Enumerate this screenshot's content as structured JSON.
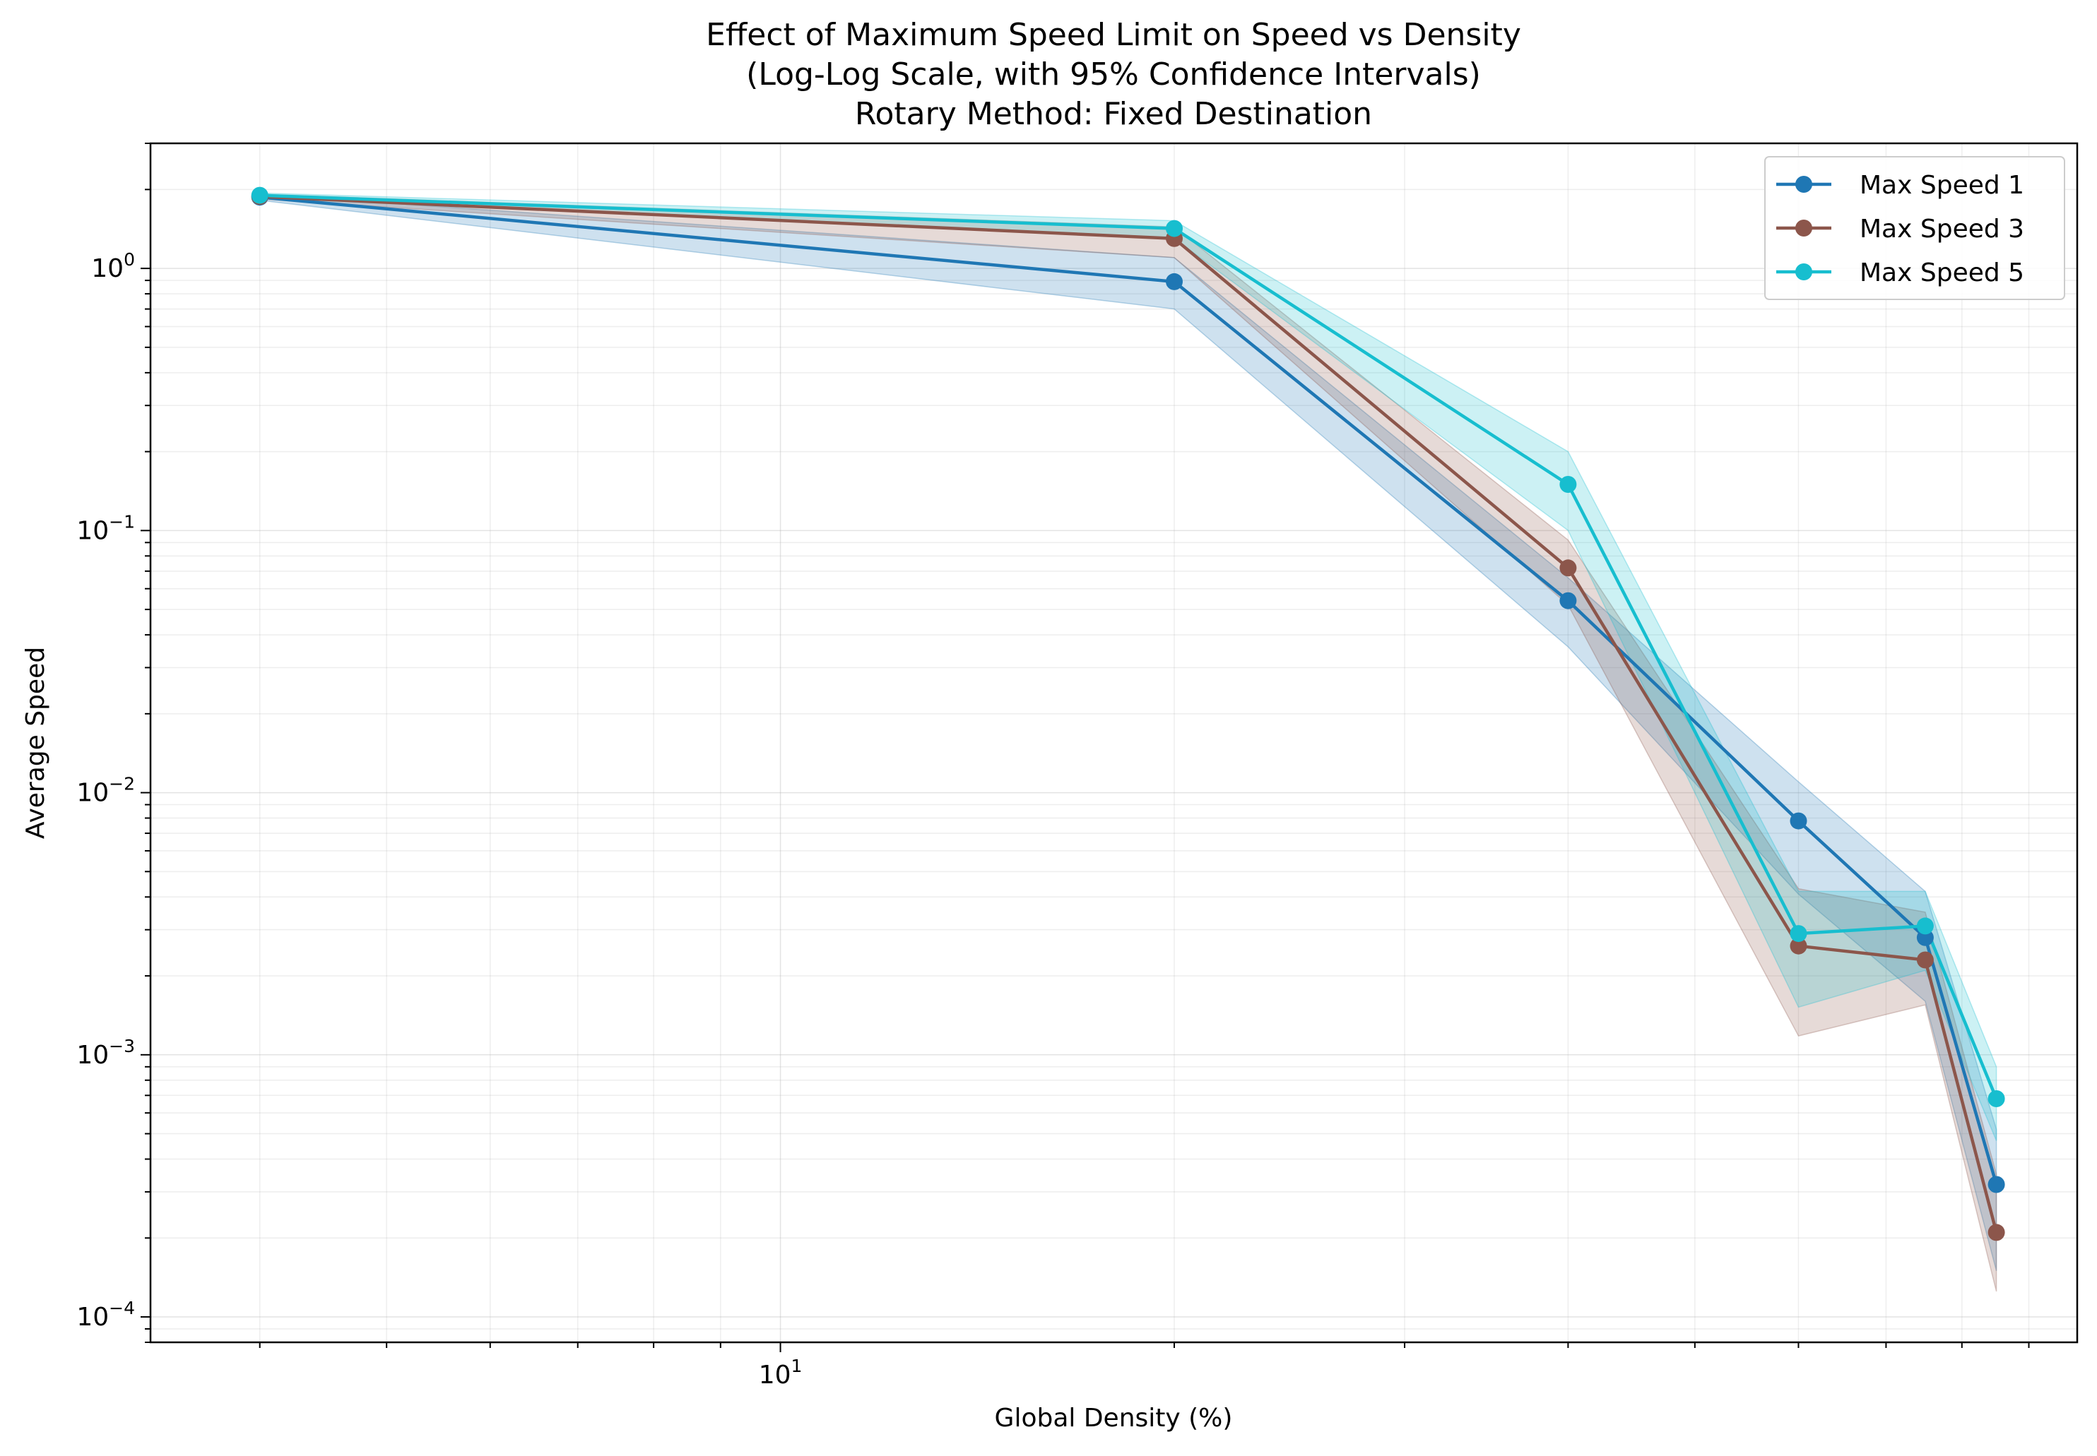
{
  "chart_data": {
    "type": "line",
    "title_lines": [
      "Effect of Maximum Speed Limit on Speed vs Density",
      "(Log-Log Scale, with 95% Confidence Intervals)",
      "Rotary Method: Fixed Destination"
    ],
    "xlabel": "Global Density (%)",
    "ylabel": "Average Speed",
    "xscale": "log",
    "yscale": "log",
    "xlim": [
      3.3,
      98
    ],
    "ylim": [
      8e-05,
      3.0
    ],
    "grid": true,
    "legend_position": "top-right",
    "x_ticks": [
      {
        "value": 10,
        "base": "10",
        "exp": "1"
      }
    ],
    "y_ticks": [
      {
        "value": 1,
        "base": "10",
        "exp": "0"
      },
      {
        "value": 0.1,
        "base": "10",
        "exp": "−1"
      },
      {
        "value": 0.01,
        "base": "10",
        "exp": "−2"
      },
      {
        "value": 0.001,
        "base": "10",
        "exp": "−3"
      },
      {
        "value": 0.0001,
        "base": "10",
        "exp": "−4"
      }
    ],
    "x": [
      4,
      20,
      40,
      60,
      75,
      85
    ],
    "series": [
      {
        "name": "Max Speed 1",
        "color": "#1f77b4",
        "values": [
          1.87,
          0.89,
          0.054,
          0.0078,
          0.0028,
          0.00032
        ],
        "ci_low": [
          1.82,
          0.7,
          0.036,
          0.0041,
          0.0016,
          0.00015
        ],
        "ci_high": [
          1.92,
          1.1,
          0.066,
          0.011,
          0.0042,
          0.00052
        ]
      },
      {
        "name": "Max Speed 3",
        "color": "#8c564b",
        "values": [
          1.88,
          1.3,
          0.072,
          0.0026,
          0.0023,
          0.00021
        ],
        "ci_low": [
          1.84,
          1.1,
          0.052,
          0.00118,
          0.00155,
          0.000125
        ],
        "ci_high": [
          1.92,
          1.44,
          0.092,
          0.0043,
          0.0035,
          0.00035
        ]
      },
      {
        "name": "Max Speed 5",
        "color": "#17becf",
        "values": [
          1.9,
          1.42,
          0.15,
          0.0029,
          0.0031,
          0.00068
        ],
        "ci_low": [
          1.86,
          1.3,
          0.1,
          0.00152,
          0.0021,
          0.00047
        ],
        "ci_high": [
          1.94,
          1.52,
          0.2,
          0.0042,
          0.0042,
          0.0009
        ]
      }
    ]
  }
}
